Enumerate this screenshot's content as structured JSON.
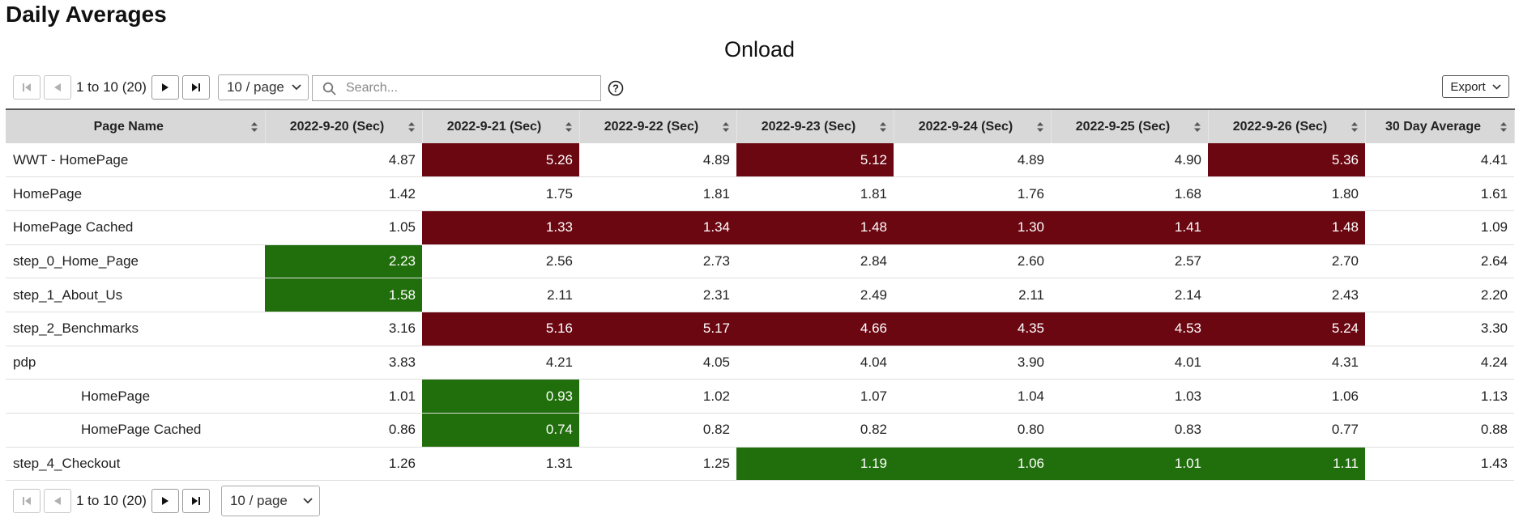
{
  "page_title": "Daily Averages",
  "chart_title": "Onload",
  "pagination": {
    "range_label": "1 to 10 (20)",
    "per_page": "10 / page"
  },
  "search": {
    "placeholder": "Search..."
  },
  "export_label": "Export",
  "colors": {
    "high": "#6b0711",
    "low": "#216f0c",
    "header_bg": "#d8d8d8"
  },
  "table": {
    "columns": [
      "Page Name",
      "2022-9-20 (Sec)",
      "2022-9-21 (Sec)",
      "2022-9-22 (Sec)",
      "2022-9-23 (Sec)",
      "2022-9-24 (Sec)",
      "2022-9-25 (Sec)",
      "2022-9-26 (Sec)",
      "30 Day Average"
    ],
    "rows": [
      {
        "name": "WWT - HomePage",
        "indent": false,
        "values": [
          "4.87",
          "5.26",
          "4.89",
          "5.12",
          "4.89",
          "4.90",
          "5.36",
          "4.41"
        ],
        "status": [
          "",
          "high",
          "",
          "high",
          "",
          "",
          "high",
          ""
        ]
      },
      {
        "name": "HomePage",
        "indent": false,
        "values": [
          "1.42",
          "1.75",
          "1.81",
          "1.81",
          "1.76",
          "1.68",
          "1.80",
          "1.61"
        ],
        "status": [
          "",
          "",
          "",
          "",
          "",
          "",
          "",
          ""
        ]
      },
      {
        "name": "HomePage Cached",
        "indent": false,
        "values": [
          "1.05",
          "1.33",
          "1.34",
          "1.48",
          "1.30",
          "1.41",
          "1.48",
          "1.09"
        ],
        "status": [
          "",
          "high",
          "high",
          "high",
          "high",
          "high",
          "high",
          ""
        ]
      },
      {
        "name": "step_0_Home_Page",
        "indent": false,
        "values": [
          "2.23",
          "2.56",
          "2.73",
          "2.84",
          "2.60",
          "2.57",
          "2.70",
          "2.64"
        ],
        "status": [
          "low",
          "",
          "",
          "",
          "",
          "",
          "",
          ""
        ]
      },
      {
        "name": "step_1_About_Us",
        "indent": false,
        "values": [
          "1.58",
          "2.11",
          "2.31",
          "2.49",
          "2.11",
          "2.14",
          "2.43",
          "2.20"
        ],
        "status": [
          "low",
          "",
          "",
          "",
          "",
          "",
          "",
          ""
        ]
      },
      {
        "name": "step_2_Benchmarks",
        "indent": false,
        "values": [
          "3.16",
          "5.16",
          "5.17",
          "4.66",
          "4.35",
          "4.53",
          "5.24",
          "3.30"
        ],
        "status": [
          "",
          "high",
          "high",
          "high",
          "high",
          "high",
          "high",
          ""
        ]
      },
      {
        "name": "pdp",
        "indent": false,
        "values": [
          "3.83",
          "4.21",
          "4.05",
          "4.04",
          "3.90",
          "4.01",
          "4.31",
          "4.24"
        ],
        "status": [
          "",
          "",
          "",
          "",
          "",
          "",
          "",
          ""
        ]
      },
      {
        "name": "HomePage",
        "indent": true,
        "values": [
          "1.01",
          "0.93",
          "1.02",
          "1.07",
          "1.04",
          "1.03",
          "1.06",
          "1.13"
        ],
        "status": [
          "",
          "low",
          "",
          "",
          "",
          "",
          "",
          ""
        ]
      },
      {
        "name": "HomePage Cached",
        "indent": true,
        "values": [
          "0.86",
          "0.74",
          "0.82",
          "0.82",
          "0.80",
          "0.83",
          "0.77",
          "0.88"
        ],
        "status": [
          "",
          "low",
          "",
          "",
          "",
          "",
          "",
          ""
        ]
      },
      {
        "name": "step_4_Checkout",
        "indent": false,
        "values": [
          "1.26",
          "1.31",
          "1.25",
          "1.19",
          "1.06",
          "1.01",
          "1.11",
          "1.43"
        ],
        "status": [
          "",
          "",
          "",
          "low",
          "low",
          "low",
          "low",
          ""
        ]
      }
    ]
  }
}
